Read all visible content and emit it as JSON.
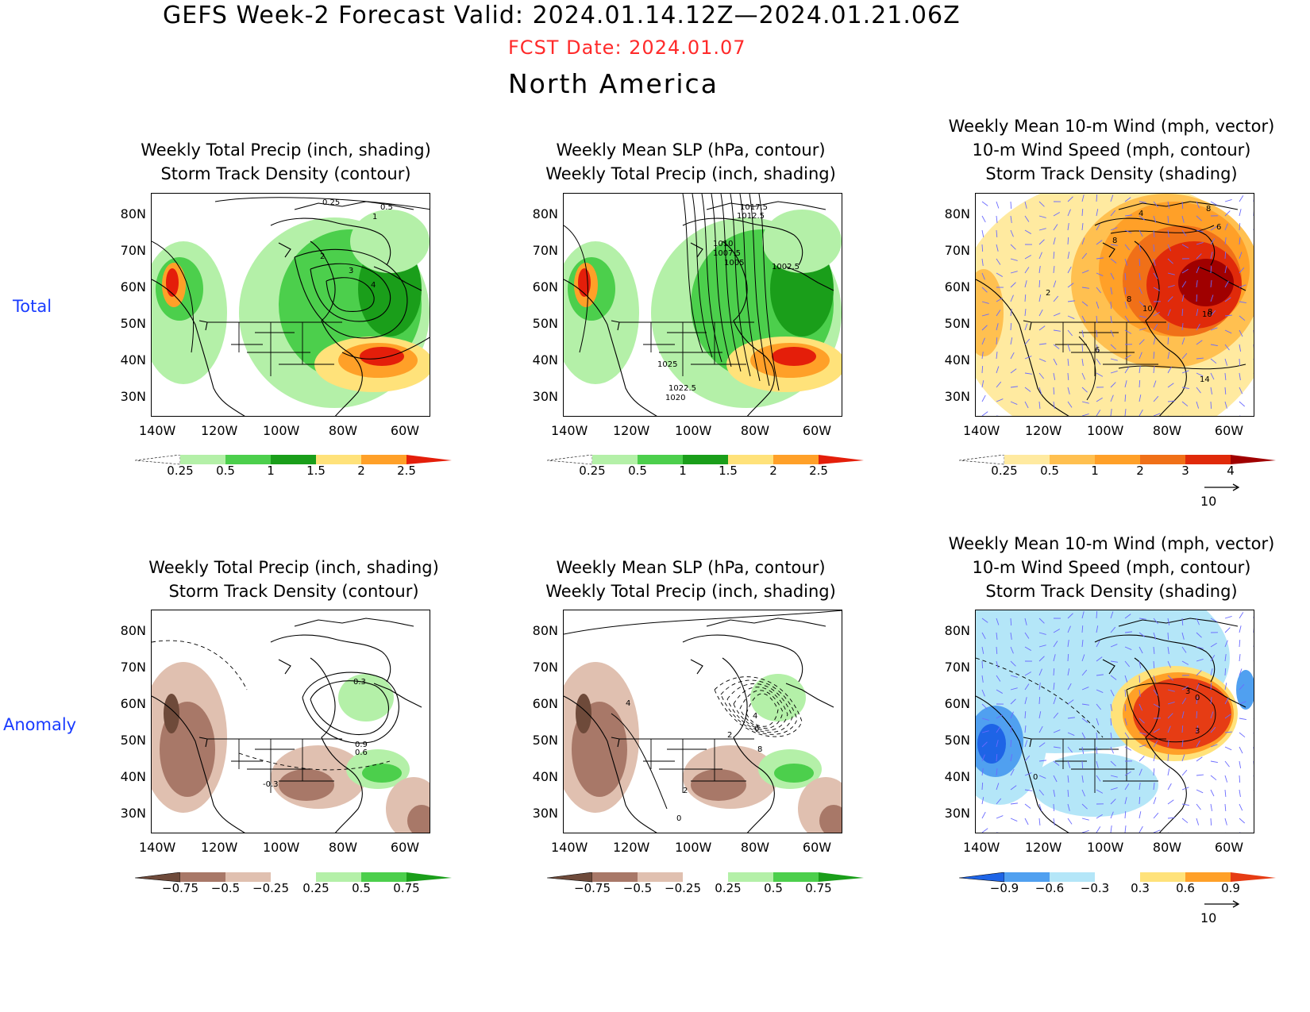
{
  "header": {
    "title": "GEFS Week-2 Forecast        Valid: 2024.01.14.12Z—2024.01.21.06Z",
    "fcst_date": "FCST Date: 2024.01.07",
    "region": "North America"
  },
  "row_labels": {
    "total": "Total",
    "anomaly": "Anomaly"
  },
  "axes": {
    "lat_labels": [
      "80N",
      "70N",
      "60N",
      "50N",
      "40N",
      "30N"
    ],
    "lon_labels": [
      "140W",
      "120W",
      "100W",
      "80W",
      "60W"
    ]
  },
  "panels": {
    "p1": {
      "title1": "Weekly Total Precip (inch, shading)",
      "title2": "Storm Track Density (contour)",
      "contour_labels": [
        "0.25",
        "0.5",
        "1",
        "2",
        "3",
        "4"
      ]
    },
    "p2": {
      "title1": "Weekly Mean SLP (hPa, contour)",
      "title2": "Weekly Total Precip (inch, shading)",
      "contour_labels": [
        "1017.5",
        "1012.5",
        "1010",
        "1007.5",
        "1005",
        "1002.5",
        "1025",
        "1022.5",
        "1020"
      ]
    },
    "p3": {
      "title0": "Weekly Mean 10-m Wind (mph, vector)",
      "title1": "10-m Wind Speed (mph, contour)",
      "title2": "Storm Track Density (shading)",
      "contour_labels": [
        "4",
        "8",
        "6",
        "8",
        "2",
        "8",
        "10",
        "10",
        "8",
        "6",
        "14"
      ]
    },
    "p4": {
      "title1": "Weekly Total Precip (inch, shading)",
      "title2": "Storm Track Density (contour)",
      "contour_labels": [
        "0.3",
        "0.9",
        "0.6",
        "-0.3"
      ]
    },
    "p5": {
      "title1": "Weekly Mean SLP (hPa, contour)",
      "title2": "Weekly Total Precip (inch, shading)",
      "contour_labels": [
        "4",
        "2",
        "4",
        "6",
        "8",
        "2",
        "0"
      ]
    },
    "p6": {
      "title0": "Weekly Mean 10-m Wind (mph, vector)",
      "title1": "10-m Wind Speed (mph, contour)",
      "title2": "Storm Track Density (shading)",
      "contour_labels": [
        "3",
        "0",
        "3",
        "0"
      ]
    }
  },
  "colorbars": {
    "precip_total": {
      "labels": [
        "0.25",
        "0.5",
        "1",
        "1.5",
        "2",
        "2.5"
      ],
      "colors": [
        "#ffffff",
        "#b4f0a8",
        "#4ccf4c",
        "#1a9e1a",
        "#ffe27a",
        "#ffa028",
        "#e41e0a"
      ]
    },
    "density_total": {
      "labels": [
        "0.25",
        "0.5",
        "1",
        "2",
        "3",
        "4"
      ],
      "colors": [
        "#ffffff",
        "#ffeaa0",
        "#ffc050",
        "#ffa028",
        "#f07018",
        "#e02a0a",
        "#a00000"
      ]
    },
    "precip_anom": {
      "labels": [
        "−0.75",
        "−0.5",
        "−0.25",
        "0.25",
        "0.5",
        "0.75"
      ],
      "colors": [
        "#6e4a3a",
        "#a87868",
        "#e0c0b0",
        "#ffffff",
        "#b4f0a8",
        "#4ccf4c",
        "#1a9e1a"
      ]
    },
    "density_anom": {
      "labels": [
        "−0.9",
        "−0.6",
        "−0.3",
        "0.3",
        "0.6",
        "0.9"
      ],
      "colors": [
        "#1e64e6",
        "#50a0f0",
        "#b4e6f8",
        "#ffffff",
        "#ffe27a",
        "#ffa028",
        "#e63c14"
      ]
    }
  },
  "vector_ref": "10"
}
